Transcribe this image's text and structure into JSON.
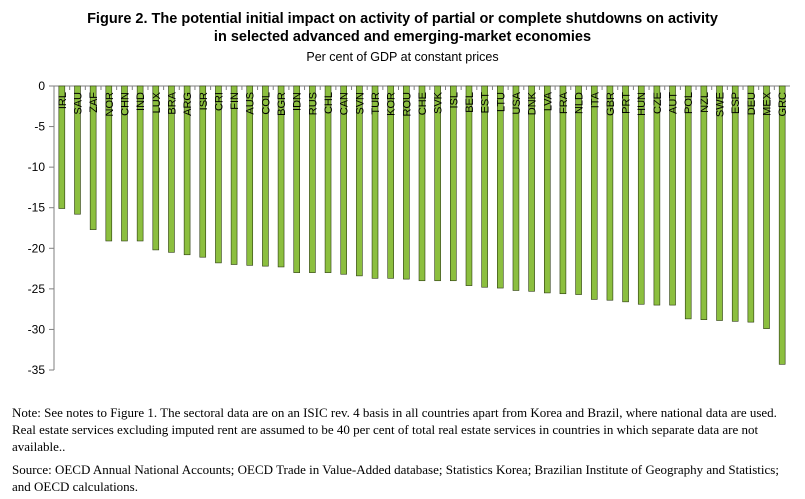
{
  "chart_data": {
    "type": "bar",
    "title_line1": "Figure 2. The potential initial impact on activity of partial or complete shutdowns on activity",
    "title_line2": "in selected advanced and emerging-market economies",
    "subtitle": "Per cent of GDP at constant prices",
    "xlabel": "",
    "ylabel": "",
    "ylim": [
      -35,
      0
    ],
    "yticks": [
      0,
      -5,
      -10,
      -15,
      -20,
      -25,
      -30,
      -35
    ],
    "grid": false,
    "bar_color": "#8cbf3f",
    "bar_edge_color": "#2b3a10",
    "categories": [
      "IRL",
      "SAU",
      "ZAF",
      "NOR",
      "CHN",
      "IND",
      "LUX",
      "BRA",
      "ARG",
      "ISR",
      "CRI",
      "FIN",
      "AUS",
      "COL",
      "BGR",
      "IDN",
      "RUS",
      "CHL",
      "CAN",
      "SVN",
      "TUR",
      "KOR",
      "ROU",
      "CHE",
      "SVK",
      "ISL",
      "BEL",
      "EST",
      "LTU",
      "USA",
      "DNK",
      "LVA",
      "FRA",
      "NLD",
      "ITA",
      "GBR",
      "PRT",
      "HUN",
      "CZE",
      "AUT",
      "POL",
      "NZL",
      "SWE",
      "ESP",
      "DEU",
      "MEX",
      "GRC"
    ],
    "values": [
      -15.1,
      -15.8,
      -17.7,
      -19.1,
      -19.1,
      -19.1,
      -20.2,
      -20.5,
      -20.8,
      -21.1,
      -21.8,
      -22.0,
      -22.1,
      -22.2,
      -22.3,
      -23.0,
      -23.0,
      -23.0,
      -23.2,
      -23.4,
      -23.7,
      -23.7,
      -23.8,
      -24.0,
      -24.0,
      -24.0,
      -24.6,
      -24.8,
      -24.9,
      -25.2,
      -25.3,
      -25.5,
      -25.6,
      -25.7,
      -26.3,
      -26.4,
      -26.6,
      -26.9,
      -27.0,
      -27.0,
      -28.7,
      -28.8,
      -28.9,
      -29.0,
      -29.1,
      -29.9,
      -34.3
    ]
  },
  "note": "Note: See notes to Figure 1. The sectoral data are on an ISIC rev. 4 basis in all countries apart from Korea and Brazil, where national data are used. Real estate services excluding imputed rent are assumed to be 40 per cent of total real estate services in countries in which separate data are not available..",
  "source": "Source: OECD Annual National Accounts; OECD Trade in Value-Added database; Statistics Korea; Brazilian Institute of Geography and Statistics; and OECD calculations."
}
